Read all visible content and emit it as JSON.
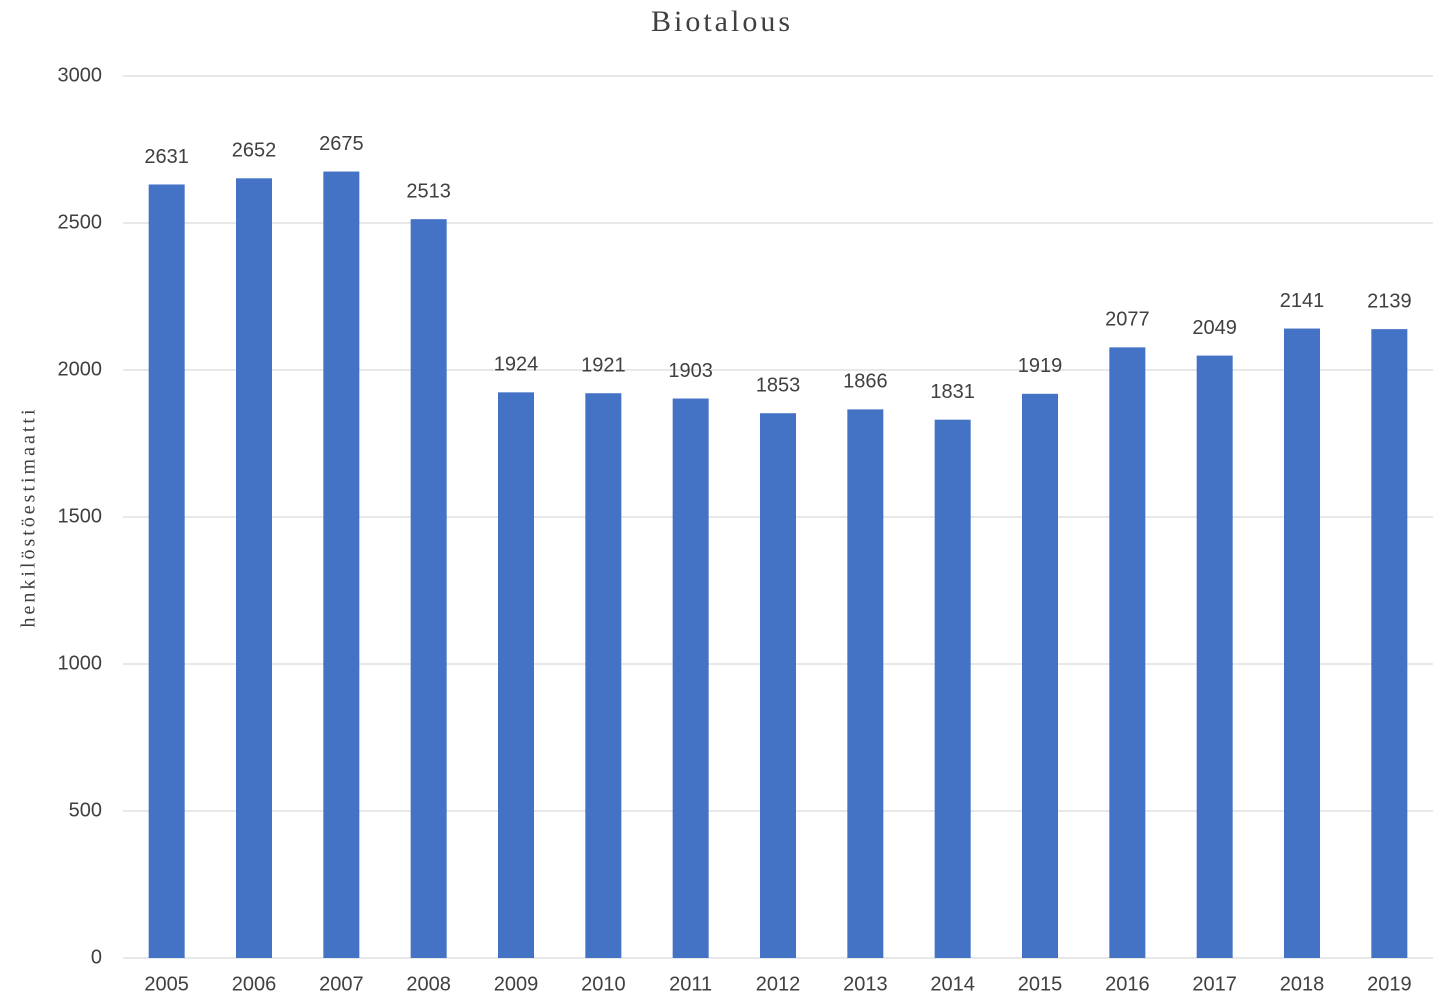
{
  "chart_data": {
    "type": "bar",
    "title": "Biotalous",
    "y_label": "henkilöstöestimaatti",
    "categories": [
      "2005",
      "2006",
      "2007",
      "2008",
      "2009",
      "2010",
      "2011",
      "2012",
      "2013",
      "2014",
      "2015",
      "2016",
      "2017",
      "2018",
      "2019"
    ],
    "values": [
      2631,
      2652,
      2675,
      2513,
      1924,
      1921,
      1903,
      1853,
      1866,
      1831,
      1919,
      2077,
      2049,
      2141,
      2139
    ],
    "color": "#4472c4",
    "ylim": [
      0,
      3000
    ],
    "yticks": [
      0,
      500,
      1000,
      1500,
      2000,
      2500,
      3000
    ],
    "grid": true
  }
}
